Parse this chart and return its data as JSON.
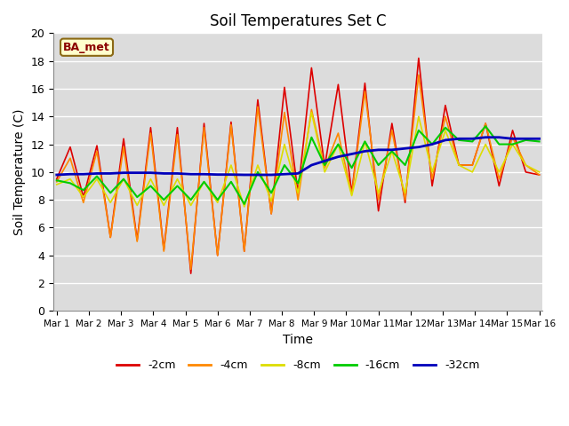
{
  "title": "Soil Temperatures Set C",
  "xlabel": "Time",
  "ylabel": "Soil Temperature (C)",
  "annotation": "BA_met",
  "ylim": [
    0,
    20
  ],
  "background_color": "#dcdcdc",
  "series_order": [
    "-2cm",
    "-4cm",
    "-8cm",
    "-16cm",
    "-32cm"
  ],
  "series": {
    "-2cm": {
      "color": "#dd0000",
      "lw": 1.2
    },
    "-4cm": {
      "color": "#ff8800",
      "lw": 1.2
    },
    "-8cm": {
      "color": "#dddd00",
      "lw": 1.2
    },
    "-16cm": {
      "color": "#00cc00",
      "lw": 1.5
    },
    "-32cm": {
      "color": "#0000bb",
      "lw": 2.0
    }
  },
  "xtick_labels": [
    "Mar 1",
    "Mar 2",
    "Mar 3",
    "Mar 4",
    "Mar 5",
    "Mar 6",
    "Mar 7",
    "Mar 8",
    "Mar 9",
    "Mar 10",
    "Mar 11",
    "Mar 12",
    "Mar 13",
    "Mar 14",
    "Mar 15",
    "Mar 16"
  ],
  "ytick_labels": [
    "0",
    "2",
    "4",
    "6",
    "8",
    "10",
    "12",
    "14",
    "16",
    "18",
    "20"
  ],
  "data": {
    "x": [
      0,
      0.42,
      0.83,
      1.25,
      1.67,
      2.08,
      2.5,
      2.92,
      3.33,
      3.75,
      4.17,
      4.58,
      5.0,
      5.42,
      5.83,
      6.25,
      6.67,
      7.08,
      7.5,
      7.92,
      8.33,
      8.75,
      9.17,
      9.58,
      10.0,
      10.42,
      10.83,
      11.25,
      11.67,
      12.08,
      12.5,
      12.92,
      13.33,
      13.75,
      14.17,
      14.58,
      15.0
    ],
    "-2cm": [
      9.5,
      11.8,
      8.2,
      11.9,
      5.3,
      12.4,
      5.1,
      13.2,
      4.4,
      13.2,
      2.7,
      13.5,
      4.0,
      13.6,
      4.3,
      15.2,
      7.0,
      16.1,
      8.5,
      17.5,
      10.4,
      16.3,
      8.5,
      16.4,
      7.2,
      13.5,
      7.8,
      18.2,
      9.0,
      14.8,
      10.5,
      10.5,
      13.5,
      9.0,
      13.0,
      10.0,
      9.8
    ],
    "-4cm": [
      9.3,
      11.0,
      7.8,
      11.5,
      5.3,
      11.8,
      5.0,
      12.8,
      4.3,
      12.7,
      3.0,
      13.2,
      4.0,
      13.4,
      4.3,
      14.7,
      7.0,
      14.3,
      8.0,
      14.5,
      10.3,
      12.8,
      8.4,
      15.8,
      8.0,
      13.0,
      8.0,
      17.0,
      9.5,
      14.0,
      10.5,
      10.5,
      13.5,
      9.5,
      12.5,
      10.5,
      9.8
    ],
    "-8cm": [
      9.1,
      9.5,
      8.2,
      9.5,
      7.8,
      9.5,
      7.6,
      9.5,
      7.6,
      9.5,
      7.6,
      9.3,
      7.8,
      10.5,
      7.5,
      10.5,
      7.9,
      12.0,
      8.5,
      14.3,
      10.0,
      12.0,
      8.3,
      12.2,
      8.5,
      11.5,
      8.5,
      14.0,
      10.0,
      13.0,
      10.5,
      10.0,
      12.0,
      10.0,
      12.0,
      10.5,
      10.0
    ],
    "-16cm": [
      9.4,
      9.2,
      8.7,
      9.7,
      8.5,
      9.5,
      8.2,
      9.0,
      8.0,
      9.0,
      8.0,
      9.3,
      8.0,
      9.3,
      7.7,
      10.0,
      8.5,
      10.5,
      9.2,
      12.5,
      10.5,
      12.0,
      10.3,
      12.2,
      10.5,
      11.5,
      10.5,
      13.0,
      12.0,
      13.2,
      12.3,
      12.2,
      13.3,
      12.0,
      12.0,
      12.3,
      12.2
    ],
    "-32cm": [
      9.8,
      9.85,
      9.85,
      9.9,
      9.9,
      9.95,
      9.95,
      9.95,
      9.9,
      9.9,
      9.85,
      9.85,
      9.82,
      9.82,
      9.8,
      9.8,
      9.8,
      9.85,
      9.9,
      10.5,
      10.8,
      11.1,
      11.3,
      11.5,
      11.6,
      11.6,
      11.7,
      11.8,
      12.0,
      12.3,
      12.4,
      12.4,
      12.5,
      12.5,
      12.4,
      12.4,
      12.4
    ]
  }
}
